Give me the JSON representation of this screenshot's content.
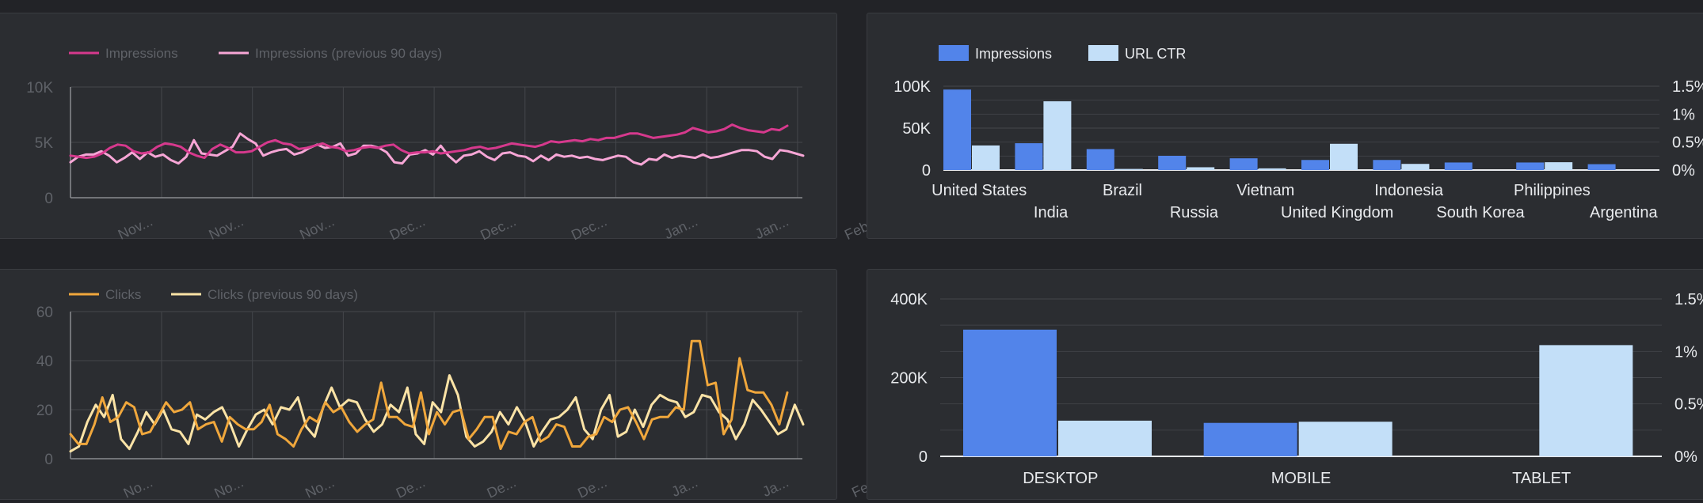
{
  "charts": {
    "impressions_line": {
      "type": "line",
      "legend": [
        "Impressions",
        "Impressions (previous 90 days)"
      ],
      "colors": [
        "#d6398d",
        "#f7a6d6"
      ],
      "yticks": [
        {
          "v": 0,
          "label": "0"
        },
        {
          "v": 5000,
          "label": "5K"
        },
        {
          "v": 10000,
          "label": "10K"
        }
      ],
      "ylim": [
        0,
        10000
      ],
      "xticks": [
        "Nov...",
        "Nov...",
        "Nov...",
        "Dec...",
        "Dec...",
        "Dec...",
        "Jan...",
        "Jan...",
        "Feb..."
      ],
      "series": [
        {
          "name": "Impressions",
          "values": [
            3800,
            3700,
            3600,
            3700,
            4000,
            4500,
            4800,
            4700,
            4200,
            4000,
            4100,
            4600,
            4900,
            4800,
            4600,
            4100,
            3800,
            3600,
            4400,
            4800,
            4500,
            4100,
            4100,
            4200,
            4600,
            5000,
            5200,
            4900,
            4800,
            4400,
            4500,
            4700,
            4900,
            4600,
            4500,
            4200,
            4300,
            4500,
            4600,
            4500,
            4700,
            4800,
            4300,
            4000,
            4100,
            4100,
            4200,
            4000,
            4100,
            4200,
            4300,
            4500,
            4600,
            4400,
            4500,
            4700,
            4900,
            4800,
            4700,
            4600,
            4800,
            5100,
            5000,
            5100,
            5200,
            5100,
            5300,
            5200,
            5400,
            5400,
            5600,
            5800,
            5800,
            5600,
            5400,
            5500,
            5600,
            5700,
            5900,
            6300,
            6100,
            5900,
            6000,
            6200,
            6600,
            6300,
            6100,
            6000,
            5900,
            6200,
            6100,
            6500
          ]
        },
        {
          "name": "Impressions (previous 90 days)",
          "values": [
            3200,
            3700,
            3900,
            3900,
            4200,
            3800,
            3200,
            3600,
            4100,
            3500,
            4100,
            3700,
            3900,
            3400,
            3100,
            3700,
            5200,
            4000,
            3900,
            3800,
            4200,
            4600,
            5800,
            5300,
            4900,
            3800,
            4100,
            4300,
            4400,
            3900,
            4100,
            4500,
            4800,
            4500,
            4600,
            4900,
            3800,
            4000,
            4700,
            4700,
            4500,
            4100,
            3200,
            3100,
            3900,
            4000,
            4300,
            3900,
            4700,
            3800,
            3200,
            3800,
            3900,
            4200,
            3700,
            3400,
            4000,
            4100,
            3800,
            3700,
            3300,
            3800,
            3400,
            3900,
            3700,
            3800,
            3600,
            3700,
            3500,
            3400,
            3600,
            3800,
            3700,
            3200,
            3000,
            3500,
            3400,
            3900,
            3600,
            3800,
            3700,
            3600,
            3900,
            3600,
            3700,
            3900,
            4100,
            4300,
            4300,
            4200,
            3700,
            3500,
            4300,
            4200,
            4000,
            3800
          ]
        }
      ]
    },
    "country_bar": {
      "type": "bar",
      "legend": [
        "Impressions",
        "URL CTR"
      ],
      "colors": [
        "#5284ea",
        "#c3dff8"
      ],
      "categories": [
        "United States",
        "India",
        "Brazil",
        "Russia",
        "Vietnam",
        "United Kingdom",
        "Indonesia",
        "South Korea",
        "Philippines",
        "Argentina"
      ],
      "yticks_left": [
        {
          "v": 0,
          "label": "0"
        },
        {
          "v": 50000,
          "label": "50K"
        },
        {
          "v": 100000,
          "label": "100K"
        }
      ],
      "yticks_right": [
        {
          "v": 0,
          "label": "0%"
        },
        {
          "v": 0.5,
          "label": "0.5%"
        },
        {
          "v": 1.0,
          "label": "1%"
        },
        {
          "v": 1.5,
          "label": "1.5%"
        }
      ],
      "ylim_left": [
        0,
        100000
      ],
      "ylim_right": [
        0,
        1.5
      ],
      "series": [
        {
          "name": "Impressions",
          "values": [
            96000,
            32000,
            25000,
            17000,
            14000,
            12000,
            12000,
            9000,
            9000,
            7000
          ]
        },
        {
          "name": "URL CTR",
          "values": [
            0.44,
            1.23,
            0.02,
            0.05,
            0.03,
            0.47,
            0.11,
            0.0,
            0.14,
            0.0
          ]
        }
      ]
    },
    "clicks_line": {
      "type": "line",
      "legend": [
        "Clicks",
        "Clicks (previous 90 days)"
      ],
      "colors": [
        "#f0a73c",
        "#fbe3a6"
      ],
      "yticks": [
        {
          "v": 0,
          "label": "0"
        },
        {
          "v": 20,
          "label": "20"
        },
        {
          "v": 40,
          "label": "40"
        },
        {
          "v": 60,
          "label": "60"
        }
      ],
      "ylim": [
        0,
        60
      ],
      "xticks": [
        "No...",
        "No...",
        "No...",
        "De...",
        "De...",
        "De...",
        "Ja...",
        "Ja...",
        "Fe..."
      ],
      "series": [
        {
          "name": "Clicks",
          "values": [
            10,
            6,
            6,
            14,
            25,
            15,
            17,
            23,
            21,
            10,
            11,
            17,
            23,
            19,
            20,
            23,
            12,
            14,
            15,
            7,
            17,
            14,
            12,
            12,
            15,
            22,
            10,
            8,
            5,
            12,
            17,
            15,
            23,
            19,
            21,
            15,
            11,
            14,
            16,
            31,
            17,
            17,
            14,
            13,
            27,
            10,
            19,
            14,
            19,
            20,
            8,
            12,
            17,
            17,
            4,
            11,
            10,
            15,
            17,
            7,
            9,
            14,
            13,
            5,
            5,
            9,
            10,
            17,
            15,
            20,
            21,
            15,
            8,
            16,
            17,
            17,
            21,
            20,
            48,
            48,
            30,
            31,
            10,
            16,
            41,
            28,
            27,
            27,
            22,
            14,
            27
          ]
        },
        {
          "name": "Clicks (previous 90 days)",
          "values": [
            3,
            5,
            15,
            22,
            17,
            26,
            8,
            4,
            11,
            19,
            14,
            20,
            12,
            11,
            6,
            18,
            16,
            19,
            21,
            14,
            5,
            12,
            18,
            20,
            14,
            21,
            20,
            25,
            13,
            9,
            21,
            29,
            21,
            24,
            23,
            16,
            11,
            14,
            22,
            19,
            29,
            10,
            6,
            23,
            19,
            34,
            26,
            9,
            5,
            7,
            11,
            19,
            14,
            21,
            15,
            5,
            11,
            16,
            17,
            20,
            25,
            12,
            8,
            20,
            26,
            9,
            11,
            20,
            13,
            22,
            26,
            24,
            23,
            17,
            19,
            26,
            25,
            19,
            16,
            8,
            14,
            24,
            20,
            15,
            10,
            12,
            22,
            14
          ]
        }
      ]
    },
    "device_bar": {
      "type": "bar",
      "categories": [
        "DESKTOP",
        "MOBILE",
        "TABLET"
      ],
      "colors": [
        "#5284ea",
        "#c3dff8"
      ],
      "yticks_left": [
        {
          "v": 0,
          "label": "0"
        },
        {
          "v": 200000,
          "label": "200K"
        },
        {
          "v": 400000,
          "label": "400K"
        }
      ],
      "yticks_right": [
        {
          "v": 0,
          "label": "0%"
        },
        {
          "v": 0.5,
          "label": "0.5%"
        },
        {
          "v": 1.0,
          "label": "1%"
        },
        {
          "v": 1.5,
          "label": "1.5%"
        }
      ],
      "ylim_left": [
        0,
        400000
      ],
      "ylim_right": [
        0,
        1.5
      ],
      "series": [
        {
          "name": "Impressions",
          "values": [
            322000,
            85000,
            0
          ]
        },
        {
          "name": "URL CTR",
          "values": [
            0.34,
            0.33,
            1.06
          ]
        }
      ]
    }
  }
}
